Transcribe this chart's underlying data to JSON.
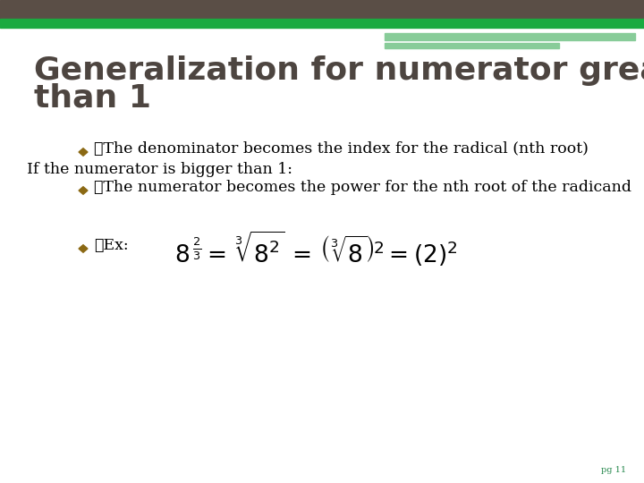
{
  "title_line1": "Generalization for numerator greater",
  "title_line2": "than 1",
  "title_color": "#4d4540",
  "title_fontsize": 26,
  "bg_color": "#ffffff",
  "header_dark_color": "#5a4e46",
  "green_bar_color": "#1aaa40",
  "green_light_color": "#88cc99",
  "bullet1": "The denominator becomes the index for the radical (nth root)",
  "bullet2_pre": "If the numerator is bigger than 1:",
  "bullet3": "The numerator becomes the power for the nth root of the radicand",
  "ex_label": "Ex:",
  "page_label": "pg 11",
  "page_label_color": "#2a8a50",
  "body_fontsize": 12.5,
  "body_color": "#000000",
  "diamond_color": "#8B6914"
}
